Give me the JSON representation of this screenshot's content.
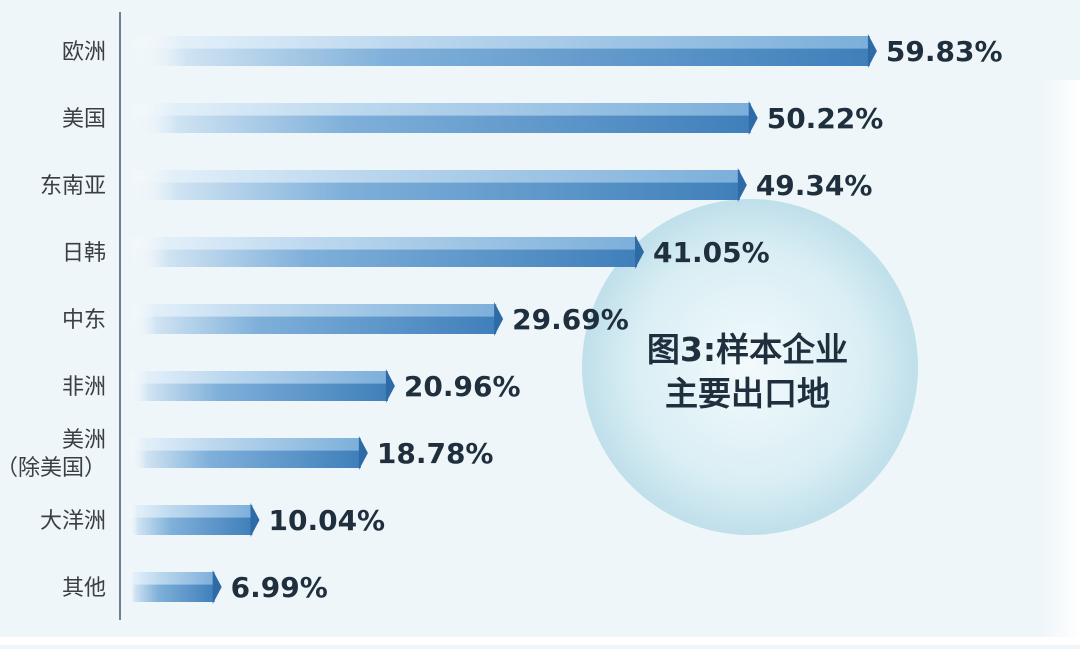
{
  "chart_data": {
    "type": "bar",
    "orientation": "horizontal",
    "title_lines": [
      "图3:样本企业",
      "主要出口地"
    ],
    "categories": [
      [
        "欧洲"
      ],
      [
        "美国"
      ],
      [
        "东南亚"
      ],
      [
        "日韩"
      ],
      [
        "中东"
      ],
      [
        "非洲"
      ],
      [
        "美洲",
        "（除美国）"
      ],
      [
        "大洋洲"
      ],
      [
        "其他"
      ]
    ],
    "values": [
      59.83,
      50.22,
      49.34,
      41.05,
      29.69,
      20.96,
      18.78,
      10.04,
      6.99
    ],
    "value_labels": [
      "59.83%",
      "50.22%",
      "49.34%",
      "41.05%",
      "29.69%",
      "20.96%",
      "18.78%",
      "10.04%",
      "6.99%"
    ],
    "xlim": [
      0,
      60
    ],
    "grid": false,
    "legend": "none",
    "colors": {
      "bar_dark": "#3f7fba",
      "bar_light": "#9ec6e6",
      "tip": "#2e6aa6",
      "label": "#1f2f3d",
      "circle": "#cfe6ef"
    }
  }
}
